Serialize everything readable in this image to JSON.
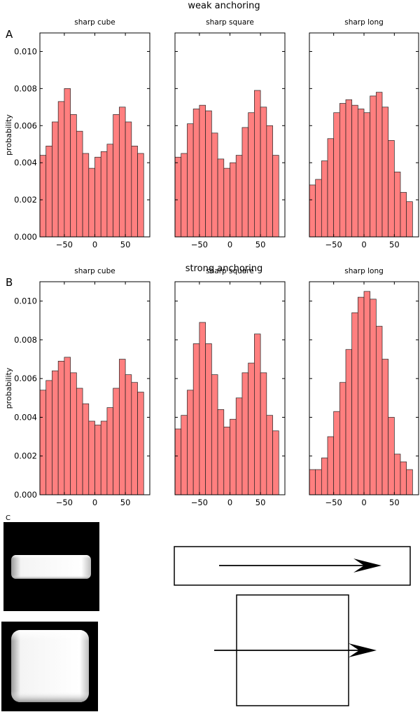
{
  "figure": {
    "panel_letters": [
      "A",
      "B",
      "C"
    ],
    "colors": {
      "bar_fill": "#ff7f7f",
      "bar_edge": "#222222",
      "image_bg": "#000000",
      "shape_fill": "#ffffff"
    }
  },
  "chart_data": [
    {
      "type": "bar",
      "row_title": "weak anchoring",
      "title": "sharp cube",
      "ylabel": "probability",
      "xlim": [
        -90,
        90
      ],
      "ylim": [
        0,
        0.011
      ],
      "yticks": [
        0,
        0.002,
        0.004,
        0.006,
        0.008,
        0.01
      ],
      "ytick_labels": [
        "0.000",
        "0.002",
        "0.004",
        "0.006",
        "0.008",
        "0.010"
      ],
      "xticks": [
        -50,
        0,
        50
      ],
      "xtick_labels": [
        "−50",
        "0",
        "50"
      ],
      "bin_width": 10,
      "bin_start": -90,
      "values": [
        0.0044,
        0.0049,
        0.0062,
        0.0073,
        0.008,
        0.0066,
        0.0057,
        0.0045,
        0.0037,
        0.0043,
        0.0046,
        0.005,
        0.0066,
        0.007,
        0.0062,
        0.0049,
        0.0045
      ]
    },
    {
      "type": "bar",
      "row_title": "weak anchoring",
      "title": "sharp square",
      "ylabel": "",
      "xlim": [
        -90,
        90
      ],
      "ylim": [
        0,
        0.011
      ],
      "yticks": [
        0,
        0.002,
        0.004,
        0.006,
        0.008,
        0.01
      ],
      "ytick_labels": [],
      "xticks": [
        -50,
        0,
        50
      ],
      "xtick_labels": [
        "−50",
        "0",
        "50"
      ],
      "bin_width": 10,
      "bin_start": -90,
      "values": [
        0.0043,
        0.0045,
        0.0061,
        0.0069,
        0.0071,
        0.0068,
        0.0056,
        0.0042,
        0.0037,
        0.004,
        0.0044,
        0.0059,
        0.0067,
        0.0079,
        0.007,
        0.006,
        0.0044
      ]
    },
    {
      "type": "bar",
      "row_title": "weak anchoring",
      "title": "sharp long",
      "ylabel": "",
      "xlim": [
        -90,
        90
      ],
      "ylim": [
        0,
        0.011
      ],
      "yticks": [
        0,
        0.002,
        0.004,
        0.006,
        0.008,
        0.01
      ],
      "ytick_labels": [],
      "xticks": [
        -50,
        0,
        50
      ],
      "xtick_labels": [
        "−50",
        "0",
        "50"
      ],
      "bin_width": 10,
      "bin_start": -90,
      "values": [
        0.0028,
        0.0031,
        0.0041,
        0.0053,
        0.0067,
        0.0072,
        0.0074,
        0.0071,
        0.0069,
        0.0067,
        0.0076,
        0.0078,
        0.007,
        0.0052,
        0.0035,
        0.0024,
        0.0019
      ]
    },
    {
      "type": "bar",
      "row_title": "strong anchoring",
      "title": "sharp cube",
      "ylabel": "probability",
      "xlim": [
        -90,
        90
      ],
      "ylim": [
        0,
        0.011
      ],
      "yticks": [
        0,
        0.002,
        0.004,
        0.006,
        0.008,
        0.01
      ],
      "ytick_labels": [
        "0.000",
        "0.002",
        "0.004",
        "0.006",
        "0.008",
        "0.010"
      ],
      "xticks": [
        -50,
        0,
        50
      ],
      "xtick_labels": [
        "−50",
        "0",
        "50"
      ],
      "bin_width": 10,
      "bin_start": -90,
      "values": [
        0.0054,
        0.0059,
        0.0064,
        0.0069,
        0.0071,
        0.0063,
        0.0055,
        0.0047,
        0.0038,
        0.0036,
        0.0038,
        0.0045,
        0.0055,
        0.007,
        0.0062,
        0.0058,
        0.0053
      ]
    },
    {
      "type": "bar",
      "row_title": "strong anchoring",
      "title": "sharp square",
      "ylabel": "",
      "xlim": [
        -90,
        90
      ],
      "ylim": [
        0,
        0.011
      ],
      "yticks": [
        0,
        0.002,
        0.004,
        0.006,
        0.008,
        0.01
      ],
      "ytick_labels": [],
      "xticks": [
        -50,
        0,
        50
      ],
      "xtick_labels": [
        "−50",
        "0",
        "50"
      ],
      "bin_width": 10,
      "bin_start": -90,
      "values": [
        0.0034,
        0.0041,
        0.0054,
        0.0078,
        0.0089,
        0.0078,
        0.0062,
        0.0044,
        0.0035,
        0.0039,
        0.005,
        0.0063,
        0.0068,
        0.0083,
        0.0063,
        0.0041,
        0.0033
      ]
    },
    {
      "type": "bar",
      "row_title": "strong anchoring",
      "title": "sharp long",
      "ylabel": "",
      "xlim": [
        -90,
        90
      ],
      "ylim": [
        0,
        0.011
      ],
      "yticks": [
        0,
        0.002,
        0.004,
        0.006,
        0.008,
        0.01
      ],
      "ytick_labels": [],
      "xticks": [
        -50,
        0,
        50
      ],
      "xtick_labels": [
        "−50",
        "0",
        "50"
      ],
      "bin_width": 10,
      "bin_start": -90,
      "values": [
        0.0013,
        0.0013,
        0.0019,
        0.003,
        0.0043,
        0.0058,
        0.0075,
        0.0094,
        0.0102,
        0.0105,
        0.0101,
        0.0087,
        0.007,
        0.004,
        0.0021,
        0.0017,
        0.0013
      ]
    }
  ]
}
